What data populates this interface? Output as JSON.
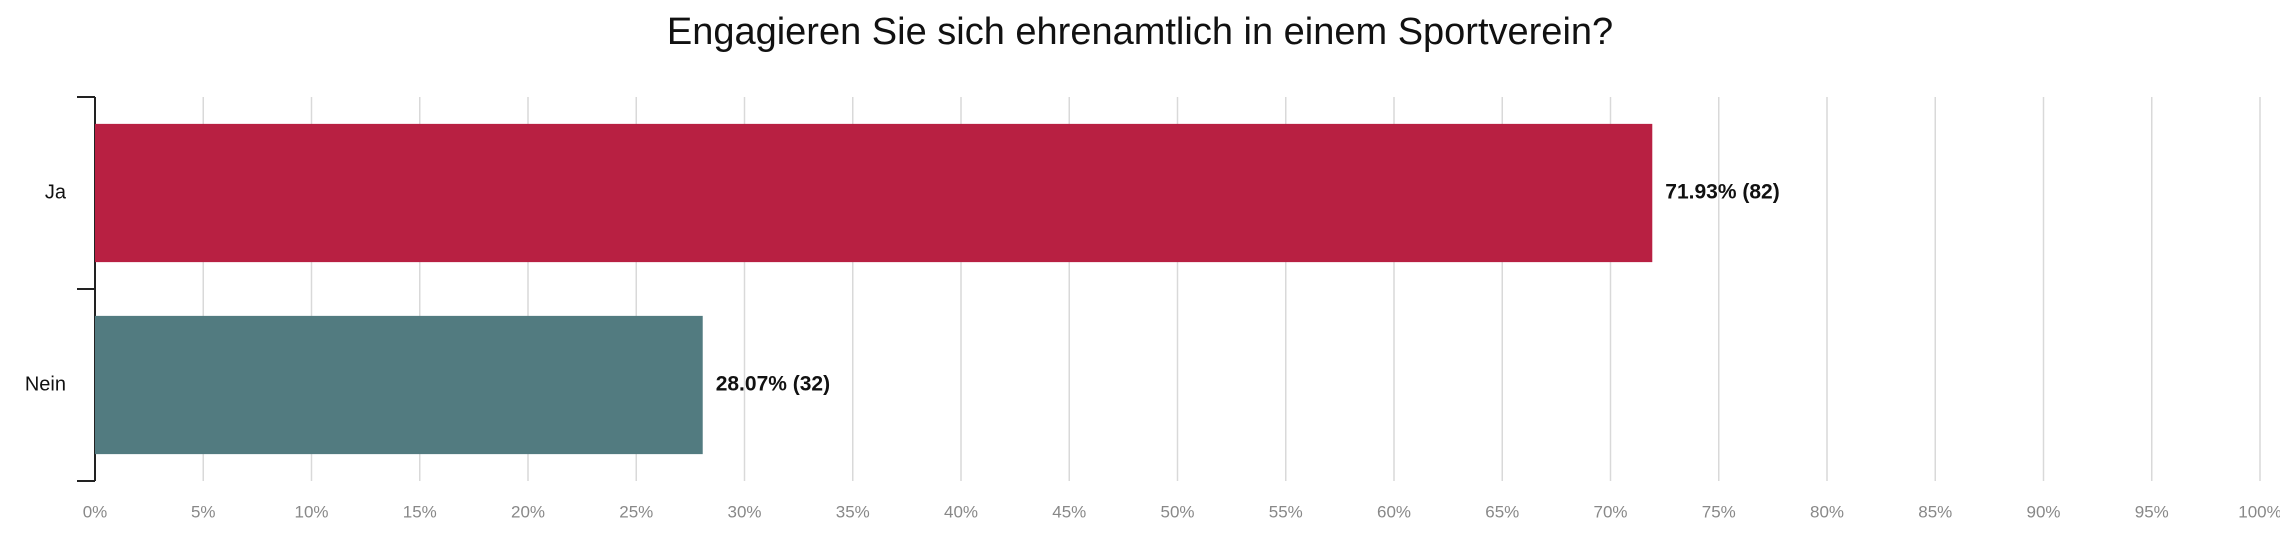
{
  "chart_data": {
    "type": "hbar",
    "title": "Engagieren Sie sich ehrenamtlich in einem Sportverein?",
    "categories": [
      "Ja",
      "Nein"
    ],
    "values": [
      71.93,
      28.07
    ],
    "value_labels": [
      "71.93% (82)",
      "28.07% (32)"
    ],
    "colors": [
      "#b82042",
      "#527b80"
    ],
    "xlim": [
      0,
      100
    ],
    "xticks": [
      {
        "value": 0,
        "label": "0%"
      },
      {
        "value": 5,
        "label": "5%"
      },
      {
        "value": 10,
        "label": "10%"
      },
      {
        "value": 15,
        "label": "15%"
      },
      {
        "value": 20,
        "label": "20%"
      },
      {
        "value": 25,
        "label": "25%"
      },
      {
        "value": 30,
        "label": "30%"
      },
      {
        "value": 35,
        "label": "35%"
      },
      {
        "value": 40,
        "label": "40%"
      },
      {
        "value": 45,
        "label": "45%"
      },
      {
        "value": 50,
        "label": "50%"
      },
      {
        "value": 55,
        "label": "55%"
      },
      {
        "value": 60,
        "label": "60%"
      },
      {
        "value": 65,
        "label": "65%"
      },
      {
        "value": 70,
        "label": "70%"
      },
      {
        "value": 75,
        "label": "75%"
      },
      {
        "value": 80,
        "label": "80%"
      },
      {
        "value": 85,
        "label": "85%"
      },
      {
        "value": 90,
        "label": "90%"
      },
      {
        "value": 95,
        "label": "95%"
      },
      {
        "value": 100,
        "label": "100%"
      }
    ],
    "grid": true
  }
}
